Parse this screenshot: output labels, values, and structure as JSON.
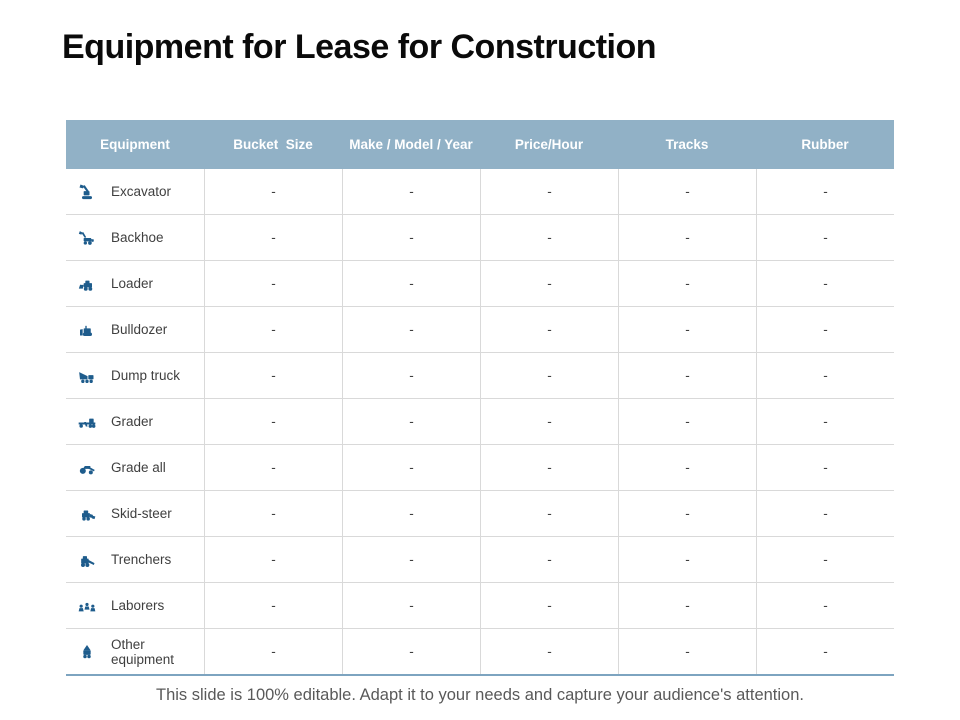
{
  "title": "Equipment for Lease for Construction",
  "table": {
    "columns": [
      "Equipment",
      "Bucket  Size",
      "Make / Model / Year",
      "Price/Hour",
      "Tracks",
      "Rubber"
    ],
    "rows": [
      {
        "equipment": "Excavator",
        "icon": "excavator-icon",
        "values": [
          "-",
          "-",
          "-",
          "-",
          "-"
        ]
      },
      {
        "equipment": "Backhoe",
        "icon": "backhoe-icon",
        "values": [
          "-",
          "-",
          "-",
          "-",
          "-"
        ]
      },
      {
        "equipment": "Loader",
        "icon": "loader-icon",
        "values": [
          "-",
          "-",
          "-",
          "-",
          "-"
        ]
      },
      {
        "equipment": "Bulldozer",
        "icon": "bulldozer-icon",
        "values": [
          "-",
          "-",
          "-",
          "-",
          "-"
        ]
      },
      {
        "equipment": "Dump truck",
        "icon": "dump-truck-icon",
        "values": [
          "-",
          "-",
          "-",
          "-",
          "-"
        ]
      },
      {
        "equipment": "Grader",
        "icon": "grader-icon",
        "values": [
          "-",
          "-",
          "-",
          "-",
          "-"
        ]
      },
      {
        "equipment": "Grade all",
        "icon": "grade-all-icon",
        "values": [
          "-",
          "-",
          "-",
          "-",
          "-"
        ]
      },
      {
        "equipment": "Skid-steer",
        "icon": "skid-steer-icon",
        "values": [
          "-",
          "-",
          "-",
          "-",
          "-"
        ]
      },
      {
        "equipment": "Trenchers",
        "icon": "trencher-icon",
        "values": [
          "-",
          "-",
          "-",
          "-",
          "-"
        ]
      },
      {
        "equipment": "Laborers",
        "icon": "laborers-icon",
        "values": [
          "-",
          "-",
          "-",
          "-",
          "-"
        ]
      },
      {
        "equipment": "Other equipment",
        "icon": "other-equipment-icon",
        "values": [
          "-",
          "-",
          "-",
          "-",
          "-"
        ]
      }
    ]
  },
  "footer": "This slide is 100% editable. Adapt it to your needs and capture your audience's attention.",
  "colors": {
    "header_bg": "#91b1c6",
    "icon_blue": "#1e5c8c",
    "grid_line": "#d9d9d9",
    "table_bottom_border": "#7da4c0",
    "row_text": "#3f3f3f",
    "footer_text": "#595959",
    "title_text": "#0a0a0a"
  }
}
